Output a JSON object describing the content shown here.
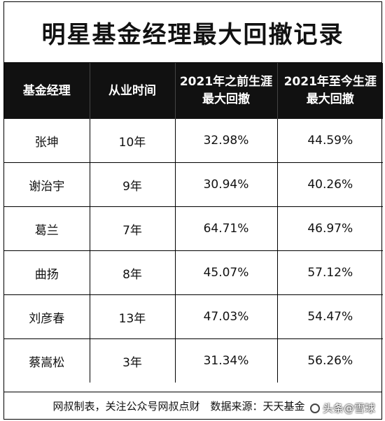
{
  "title": "明星基金经理最大回撤记录",
  "table": {
    "headers": [
      "基金经理",
      "从业时间",
      "2021年之前生涯\n最大回撤",
      "2021年至今生涯\n最大回撤"
    ],
    "rows": [
      [
        "张坤",
        "10年",
        "32.98%",
        "44.59%"
      ],
      [
        "谢治宇",
        "9年",
        "30.94%",
        "40.26%"
      ],
      [
        "葛兰",
        "7年",
        "64.71%",
        "46.97%"
      ],
      [
        "曲扬",
        "8年",
        "45.07%",
        "57.12%"
      ],
      [
        "刘彦春",
        "13年",
        "47.03%",
        "54.47%"
      ],
      [
        "蔡嵩松",
        "3年",
        "31.34%",
        "56.26%"
      ]
    ]
  },
  "footer": "网叔制表，关注公众号网叔点财　数据来源：天天基金",
  "watermark": {
    "text": "头条@雪球",
    "icon": "snowball-icon"
  }
}
